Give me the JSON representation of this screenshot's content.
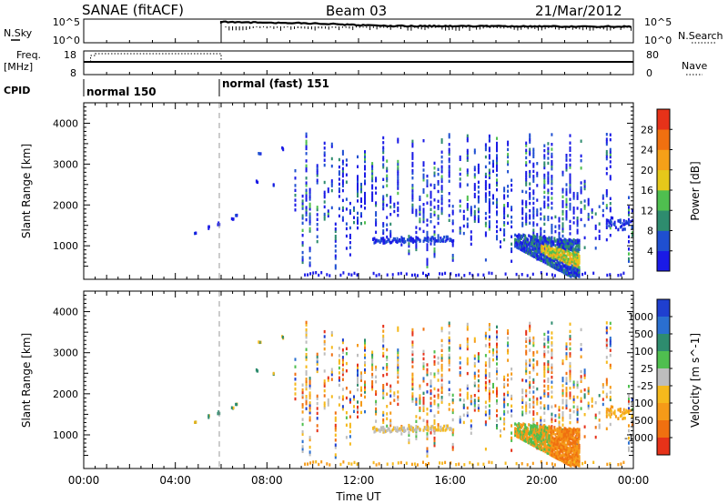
{
  "header": {
    "station": "SANAE (fitACF)",
    "beam": "Beam 03",
    "date": "21/Mar/2012"
  },
  "strip_panels": {
    "nsky_label": "N.Sky",
    "nsky_ticks": [
      "10^5",
      "10^0"
    ],
    "nsearch_label": "N.Search",
    "nsearch_ticks": [
      "10^5",
      "10^0"
    ],
    "freq_label_line1": "Freq.",
    "freq_label_line2": "[MHz]",
    "freq_ticks": [
      "18",
      "8"
    ],
    "nave_label": "Nave",
    "nave_ticks": [
      "80",
      "0"
    ],
    "cpid_label": "CPID",
    "cpid_segments": [
      {
        "label": "normal 150",
        "start_hour": 0,
        "end_hour": 6
      },
      {
        "label": "normal (fast) 151",
        "start_hour": 6,
        "end_hour": 24
      }
    ]
  },
  "chart_data": [
    {
      "type": "heatmap",
      "name": "power",
      "ylabel": "Slant Range [km]",
      "yticks": [
        "1000",
        "2000",
        "3000",
        "4000"
      ],
      "ylim": [
        180,
        4500
      ],
      "xlim": [
        0,
        24
      ],
      "colorbar": {
        "label": "Power [dB]",
        "ticks": [
          "4",
          "8",
          "12",
          "16",
          "20",
          "24",
          "28"
        ],
        "colors": [
          "#1a1ae6",
          "#1f4fd1",
          "#2e8c6e",
          "#4fbf4f",
          "#e6c81a",
          "#f5a018",
          "#f07010",
          "#e63219"
        ]
      }
    },
    {
      "type": "heatmap",
      "name": "velocity",
      "ylabel": "Slant Range [km]",
      "yticks": [
        "1000",
        "2000",
        "3000",
        "4000"
      ],
      "ylim": [
        180,
        4500
      ],
      "xlim": [
        0,
        24
      ],
      "colorbar": {
        "label": "Velocity [m s^-1]",
        "ticks": [
          "1000",
          "500",
          "100",
          "25",
          "-25",
          "-100",
          "-500",
          "-1000"
        ],
        "colors": [
          "#1f3fcf",
          "#2a6fd0",
          "#2e8c6e",
          "#4fbf4f",
          "#bdbdbd",
          "#f5b91c",
          "#f59a18",
          "#f07010",
          "#e63219"
        ]
      }
    }
  ],
  "xaxis": {
    "label": "Time UT",
    "ticks": [
      "00:00",
      "04:00",
      "08:00",
      "12:00",
      "16:00",
      "20:00",
      "00:00"
    ],
    "tick_hours": [
      0,
      4,
      8,
      12,
      16,
      20,
      24
    ]
  }
}
